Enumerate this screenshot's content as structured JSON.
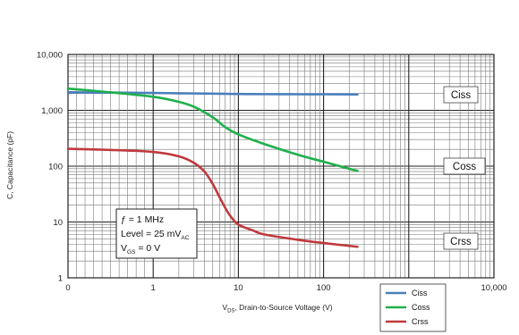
{
  "chart_data": {
    "type": "line",
    "title": "",
    "xlabel": {
      "main": "V",
      "sub": "DS",
      "rest": ", Drain-to-Source Voltage (V)"
    },
    "ylabel": "C, Capacitance (pF)",
    "x_scale": "log",
    "y_scale": "log",
    "xlim": [
      0,
      10000
    ],
    "ylim": [
      1,
      10000
    ],
    "x_ticks": [
      "0",
      "1",
      "10",
      "100",
      "10,000"
    ],
    "y_ticks": [
      "1",
      "10",
      "100",
      "1,000",
      "10,000"
    ],
    "grid": true,
    "conditions": {
      "line1": "ƒ = 1 MHz",
      "line2_main": "Level = 25 mV",
      "line2_sub": "AC",
      "line3_main": "V",
      "line3_sub": "GS",
      "line3_rest": " = 0 V"
    },
    "legend_position": "bottom-right",
    "series": [
      {
        "name": "Ciss",
        "color": "#4a7ebb",
        "x": [
          0,
          0.5,
          1,
          2,
          5,
          10,
          20,
          50,
          100,
          250
        ],
        "y": [
          2100,
          2080,
          2050,
          2020,
          1990,
          1960,
          1950,
          1940,
          1940,
          1930
        ]
      },
      {
        "name": "Coss",
        "color": "#1fb04c",
        "x": [
          0,
          0.5,
          1,
          2,
          3,
          5,
          7,
          10,
          20,
          50,
          100,
          250
        ],
        "y": [
          2450,
          2100,
          1750,
          1420,
          1160,
          750,
          500,
          370,
          250,
          160,
          120,
          82
        ]
      },
      {
        "name": "Crss",
        "color": "#c0393d",
        "x": [
          0,
          0.5,
          1,
          2,
          3,
          4,
          5,
          6,
          7,
          8,
          10,
          15,
          20,
          50,
          100,
          250
        ],
        "y": [
          205,
          195,
          180,
          150,
          115,
          80,
          48,
          28,
          18,
          13,
          9,
          7,
          6,
          4.8,
          4.2,
          3.6
        ]
      }
    ]
  }
}
